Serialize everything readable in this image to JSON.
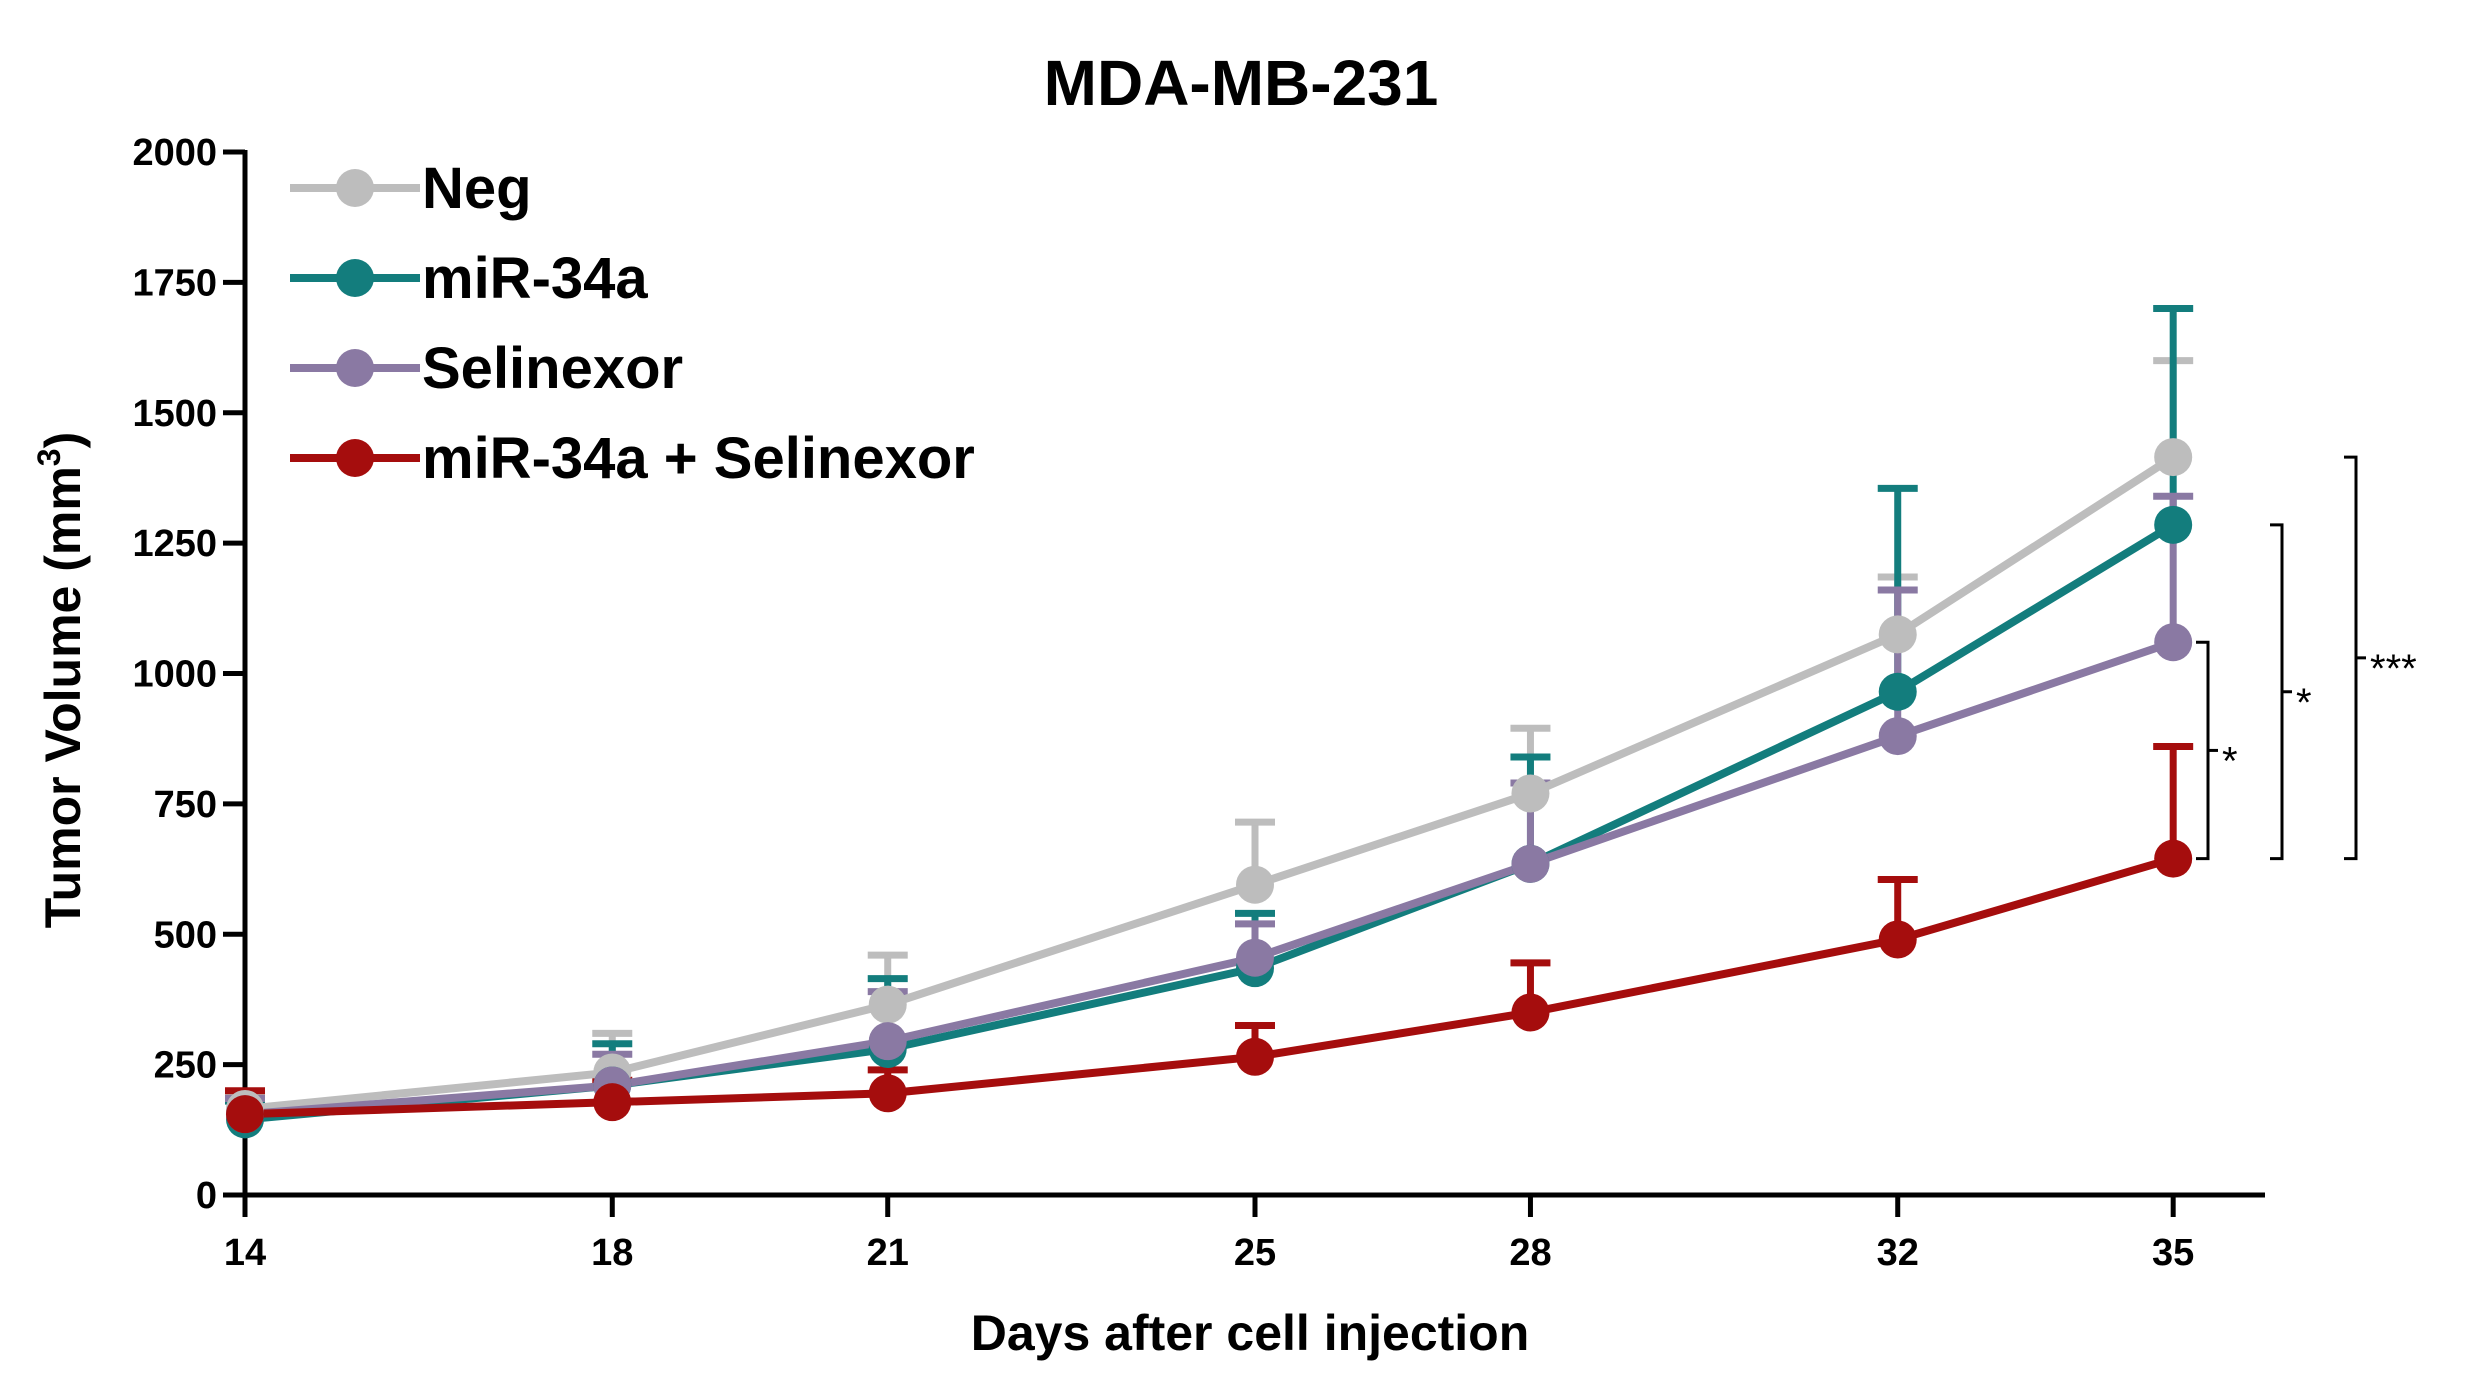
{
  "chart_data": {
    "type": "line",
    "title": "MDA-MB-231",
    "xlabel": "Days after cell injection",
    "ylabel": "Tumor Volume (mm",
    "ylabel_sup": "3",
    "ylabel_close": ")",
    "x": [
      14,
      18,
      21,
      25,
      28,
      32,
      35
    ],
    "xticks": [
      "14",
      "18",
      "21",
      "25",
      "28",
      "32",
      "35"
    ],
    "xlim": [
      14,
      36
    ],
    "ylim": [
      0,
      2000
    ],
    "yticks": [
      0,
      250,
      500,
      750,
      1000,
      1250,
      1500,
      1750,
      2000
    ],
    "ytick_labels": [
      "0",
      "250",
      "500",
      "750",
      "1000",
      "1250",
      "1500",
      "1750",
      "2000"
    ],
    "series": [
      {
        "name": "Neg",
        "color": "#bdbdbd",
        "values": [
          165,
          235,
          365,
          595,
          770,
          1075,
          1415
        ],
        "error_upper": [
          195,
          310,
          460,
          715,
          895,
          1185,
          1600
        ]
      },
      {
        "name": "miR-34a",
        "color": "#137d7d",
        "values": [
          145,
          210,
          280,
          435,
          635,
          965,
          1285
        ],
        "error_upper": [
          180,
          290,
          415,
          540,
          840,
          1355,
          1700
        ]
      },
      {
        "name": "Selinexor",
        "color": "#8a79a3",
        "values": [
          155,
          210,
          295,
          455,
          635,
          880,
          1060
        ],
        "error_upper": [
          185,
          270,
          390,
          520,
          790,
          1160,
          1340
        ]
      },
      {
        "name": "miR-34a + Selinexor",
        "color": "#a50d0d",
        "values": [
          155,
          178,
          195,
          265,
          350,
          490,
          645
        ],
        "error_upper": [
          200,
          220,
          240,
          325,
          445,
          605,
          860
        ]
      }
    ],
    "significance": [
      {
        "label": "*",
        "from_value": 645,
        "to_value": 1060
      },
      {
        "label": "*",
        "from_value": 645,
        "to_value": 1285
      },
      {
        "label": "***",
        "from_value": 645,
        "to_value": 1415
      }
    ],
    "legend_position": "top-left"
  }
}
